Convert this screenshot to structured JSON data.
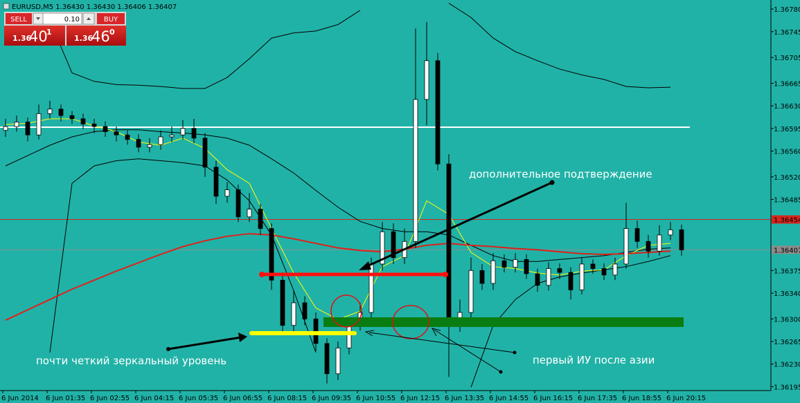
{
  "chart_data": {
    "type": "candlestick",
    "title": "EURUSD,M5  1.36430 1.36430 1.36406 1.36407",
    "ylim": [
      1.36189,
      1.36794
    ],
    "yticks": [
      {
        "value": 1.3678,
        "label": "1.36780"
      },
      {
        "value": 1.36745,
        "label": "1.36745"
      },
      {
        "value": 1.36705,
        "label": "1.36705"
      },
      {
        "value": 1.36665,
        "label": "1.36665"
      },
      {
        "value": 1.3663,
        "label": "1.36630"
      },
      {
        "value": 1.36595,
        "label": "1.36595"
      },
      {
        "value": 1.3656,
        "label": "1.36560"
      },
      {
        "value": 1.3652,
        "label": "1.36520"
      },
      {
        "value": 1.36485,
        "label": "1.36485"
      },
      {
        "value": 1.36375,
        "label": "1.36375"
      },
      {
        "value": 1.3634,
        "label": "1.36340"
      },
      {
        "value": 1.363,
        "label": "1.36300"
      },
      {
        "value": 1.36265,
        "label": "1.36265"
      },
      {
        "value": 1.3623,
        "label": "1.36230"
      },
      {
        "value": 1.36195,
        "label": "1.36195"
      }
    ],
    "x_labels": [
      "6 Jun 2014",
      "6 Jun 01:35",
      "6 Jun 02:55",
      "6 Jun 04:15",
      "6 Jun 05:35",
      "6 Jun 06:55",
      "6 Jun 08:15",
      "6 Jun 09:35",
      "6 Jun 10:55",
      "6 Jun 12:15",
      "6 Jun 13:35",
      "6 Jun 14:55",
      "6 Jun 16:15",
      "6 Jun 17:35",
      "6 Jun 18:55",
      "6 Jun 20:15"
    ],
    "candle_colors": {
      "up": "#ffffff",
      "down": "#000000",
      "wick": "#000000"
    },
    "open": [
      1.36592,
      1.36598,
      1.36605,
      1.36585,
      1.36618,
      1.36625,
      1.36615,
      1.3661,
      1.36602,
      1.36598,
      1.3659,
      1.36585,
      1.36578,
      1.36566,
      1.3657,
      1.36582,
      1.36585,
      1.36595,
      1.3658,
      1.36535,
      1.3649,
      1.365,
      1.36458,
      1.3647,
      1.3644,
      1.3636,
      1.3629,
      1.36325,
      1.363,
      1.36262,
      1.36215,
      1.36255,
      1.3629,
      1.3631,
      1.36385,
      1.36435,
      1.36395,
      1.3642,
      1.3664,
      1.367,
      1.3654,
      1.363,
      1.3631,
      1.36375,
      1.36355,
      1.3639,
      1.3638,
      1.36392,
      1.3637,
      1.36352,
      1.36378,
      1.36372,
      1.36345,
      1.36385,
      1.36378,
      1.36368,
      1.36385,
      1.3644,
      1.3642,
      1.36405,
      1.3643,
      1.36438
    ],
    "high": [
      1.3661,
      1.36615,
      1.36612,
      1.36632,
      1.36638,
      1.36632,
      1.36622,
      1.36618,
      1.3661,
      1.36606,
      1.36598,
      1.36592,
      1.36586,
      1.3658,
      1.36592,
      1.36598,
      1.36608,
      1.3661,
      1.36588,
      1.36545,
      1.36512,
      1.36508,
      1.36495,
      1.36478,
      1.36448,
      1.36372,
      1.36345,
      1.36335,
      1.3631,
      1.3627,
      1.36265,
      1.36298,
      1.36325,
      1.36395,
      1.3645,
      1.36448,
      1.3644,
      1.3675,
      1.3676,
      1.36712,
      1.36555,
      1.3633,
      1.36395,
      1.36385,
      1.36402,
      1.364,
      1.36402,
      1.364,
      1.36378,
      1.36388,
      1.36386,
      1.3638,
      1.36395,
      1.36392,
      1.36386,
      1.36395,
      1.3648,
      1.36452,
      1.3643,
      1.36445,
      1.3645,
      1.36446
    ],
    "low": [
      1.36582,
      1.3659,
      1.36575,
      1.36578,
      1.3661,
      1.36606,
      1.36602,
      1.36594,
      1.36588,
      1.36582,
      1.36575,
      1.3657,
      1.36558,
      1.36558,
      1.36562,
      1.36574,
      1.36578,
      1.36572,
      1.3652,
      1.36478,
      1.3648,
      1.3645,
      1.3645,
      1.3643,
      1.36345,
      1.36275,
      1.3628,
      1.3629,
      1.3625,
      1.362,
      1.36205,
      1.36245,
      1.36282,
      1.363,
      1.36375,
      1.36385,
      1.36385,
      1.3641,
      1.366,
      1.3653,
      1.3621,
      1.3628,
      1.363,
      1.36345,
      1.36345,
      1.36372,
      1.36372,
      1.36362,
      1.36342,
      1.36344,
      1.36362,
      1.3633,
      1.36338,
      1.3637,
      1.3636,
      1.3636,
      1.36378,
      1.3641,
      1.36395,
      1.36398,
      1.36422,
      1.36398
    ],
    "close": [
      1.36598,
      1.36605,
      1.36585,
      1.36618,
      1.36625,
      1.36615,
      1.3661,
      1.36602,
      1.36598,
      1.3659,
      1.36585,
      1.36578,
      1.36566,
      1.3657,
      1.36582,
      1.36585,
      1.36595,
      1.3658,
      1.36535,
      1.3649,
      1.365,
      1.36458,
      1.3647,
      1.3644,
      1.3636,
      1.3629,
      1.36325,
      1.363,
      1.36262,
      1.36215,
      1.36255,
      1.3629,
      1.3631,
      1.36385,
      1.36435,
      1.36395,
      1.3642,
      1.3664,
      1.367,
      1.3654,
      1.363,
      1.3631,
      1.36375,
      1.36355,
      1.3639,
      1.3638,
      1.36392,
      1.3637,
      1.36352,
      1.36378,
      1.36372,
      1.36345,
      1.36385,
      1.36378,
      1.36368,
      1.36385,
      1.3644,
      1.3642,
      1.36405,
      1.3643,
      1.36438,
      1.36407
    ],
    "indicators": [
      {
        "color": "#000000",
        "values": [
          null,
          null,
          1.36762,
          1.36681,
          1.36668,
          1.36663,
          1.36662,
          1.3666,
          1.36657,
          1.36657,
          1.36674,
          1.36703,
          1.36735,
          1.36743,
          1.36746,
          1.36756,
          1.36778,
          null,
          1.36778,
          null,
          1.36789,
          1.36767,
          1.36735,
          1.36714,
          1.367,
          1.36687,
          1.36678,
          1.36671,
          1.3666,
          1.36658,
          1.36659
        ]
      },
      {
        "color": "#000000",
        "values": [
          1.36537,
          1.36553,
          1.36569,
          1.36582,
          1.3659,
          1.36593,
          1.36593,
          1.3659,
          1.36588,
          1.36585,
          1.3658,
          1.36569,
          1.36548,
          1.36526,
          1.36499,
          1.36473,
          1.36451,
          1.3644,
          1.36435,
          1.36435,
          1.3643,
          1.36414,
          1.36398,
          1.36389,
          1.36389,
          1.36392,
          1.36395,
          1.36398,
          1.36403,
          1.36408,
          1.3641
        ]
      },
      {
        "color": "#000000",
        "values": [
          null,
          null,
          1.36248,
          1.3651,
          1.36537,
          1.36545,
          1.36548,
          1.36545,
          1.36542,
          1.36537,
          1.36515,
          1.36483,
          1.3643,
          1.36344,
          1.36248,
          null,
          null,
          null,
          null,
          null,
          null,
          1.36194,
          1.3629,
          1.3633,
          1.36355,
          1.36365,
          1.36371,
          1.36376,
          1.36381,
          1.36389,
          1.36398
        ]
      },
      {
        "color": "#ffff00",
        "values": [
          1.36601,
          1.36603,
          1.3661,
          1.3661,
          1.36599,
          1.3659,
          1.36574,
          1.36569,
          1.3658,
          1.36564,
          1.36531,
          1.3651,
          1.3644,
          1.36371,
          1.36317,
          1.36299,
          1.36312,
          1.36381,
          1.36398,
          1.36483,
          1.36462,
          1.36403,
          1.36381,
          1.36378,
          1.36371,
          1.36368,
          1.36374,
          1.36376,
          1.36398,
          1.36414,
          1.36417
        ]
      },
      {
        "color": "#e0201a",
        "values": [
          1.36298,
          1.36314,
          1.3633,
          1.36346,
          1.3636,
          1.36374,
          1.36387,
          1.364,
          1.36412,
          1.36421,
          1.36428,
          1.36432,
          1.3643,
          1.36424,
          1.36417,
          1.3641,
          1.36406,
          1.36404,
          1.36408,
          1.36414,
          1.36417,
          1.36414,
          1.36412,
          1.36409,
          1.36407,
          1.36404,
          1.36401,
          1.364,
          1.36401,
          1.36403,
          1.36405
        ]
      }
    ],
    "levels": [
      {
        "value": 1.36597,
        "color": "#ffffff"
      }
    ],
    "price_lines": [
      {
        "value": 1.36454,
        "color": "#d6261c"
      },
      {
        "value": 1.36407,
        "color": "#8c8c8c"
      }
    ],
    "annotations": [
      "дополнительное подтверждение",
      "почти четкий зеркальный уровень",
      "первый ИУ после азии"
    ],
    "trade_panel": {
      "sell": "SELL",
      "lot": "0.10",
      "buy": "BUY",
      "bid": {
        "big_figure": "1.36",
        "pips": "40",
        "point": "1"
      },
      "ask": {
        "big_figure": "1.36",
        "pips": "46",
        "point": "0"
      }
    }
  }
}
